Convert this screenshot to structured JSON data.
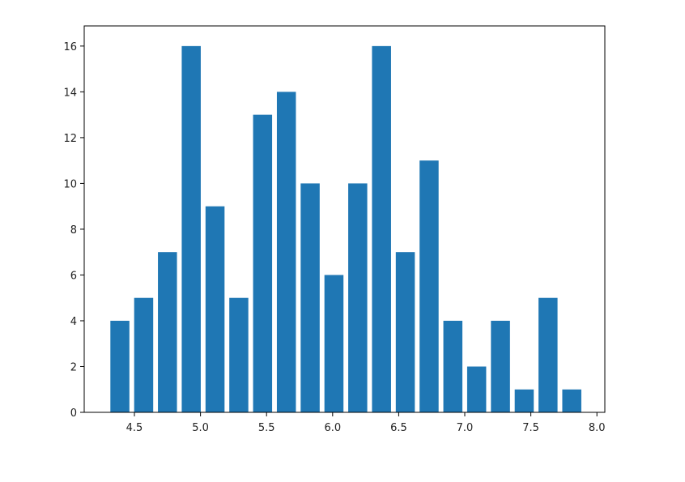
{
  "chart_data": {
    "type": "histogram",
    "color": "#1f77b4",
    "bins": [
      4.3,
      4.48,
      4.66,
      4.84,
      5.02,
      5.2,
      5.38,
      5.56,
      5.74,
      5.92,
      6.1,
      6.28,
      6.46,
      6.64,
      6.82,
      7.0,
      7.18,
      7.36,
      7.54,
      7.72,
      7.9
    ],
    "values": [
      4,
      5,
      7,
      16,
      9,
      5,
      13,
      14,
      10,
      6,
      10,
      16,
      7,
      11,
      4,
      2,
      4,
      1,
      5,
      1
    ],
    "xlim": [
      4.12,
      8.06
    ],
    "ylim": [
      0,
      16.88
    ],
    "xticks": [
      4.5,
      {
        "value": 5,
        "label": "5.0"
      },
      5.5,
      {
        "value": 6,
        "label": "6.0"
      },
      6.5,
      {
        "value": 7,
        "label": "7.0"
      },
      7.5,
      {
        "value": 8,
        "label": "8.0"
      }
    ],
    "yticks": [
      0,
      2,
      4,
      6,
      8,
      10,
      12,
      14,
      16
    ]
  }
}
